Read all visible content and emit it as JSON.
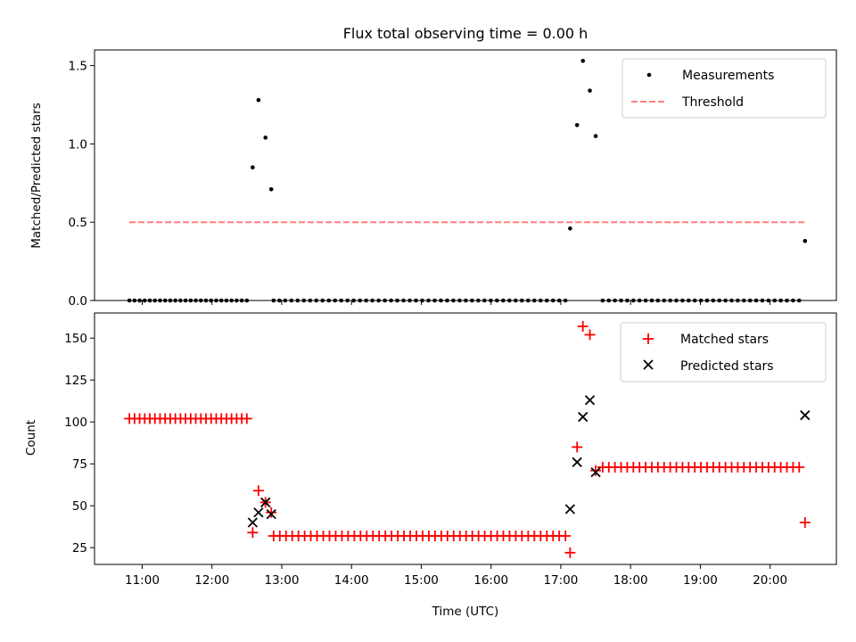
{
  "chart_data": [
    {
      "type": "scatter",
      "title": "Flux total observing time = 0.00 h",
      "xlabel": "",
      "ylabel": "Matched/Predicted stars",
      "xlim": [
        "10:19",
        "20:57"
      ],
      "ylim": [
        0,
        1.6
      ],
      "x_ticks": [
        "11:00",
        "12:00",
        "13:00",
        "14:00",
        "15:00",
        "16:00",
        "17:00",
        "18:00",
        "19:00",
        "20:00"
      ],
      "y_ticks": [
        "0.0",
        "0.5",
        "1.0",
        "1.5"
      ],
      "legend_position": "top-right",
      "legend": [
        {
          "label": "Measurements",
          "marker": "dot",
          "color": "#000000"
        },
        {
          "label": "Threshold",
          "marker": "dashed-line",
          "color": "#ff7f7f"
        }
      ],
      "series": [
        {
          "name": "Measurements",
          "color": "#000000",
          "segments": [
            {
              "from": "10:49",
              "to": "12:30",
              "count": 24,
              "y": 0
            }
          ],
          "points": [
            [
              "12:35",
              0.85
            ],
            [
              "12:40",
              1.28
            ],
            [
              "12:46",
              1.04
            ],
            [
              "12:51",
              0.71
            ],
            [
              "12:53",
              0
            ],
            [
              "12:58",
              0
            ],
            [
              "17:08",
              0.46
            ],
            [
              "17:14",
              1.12
            ],
            [
              "17:19",
              1.53
            ],
            [
              "17:25",
              1.34
            ],
            [
              "17:30",
              1.05
            ],
            [
              "20:30",
              0.38
            ]
          ],
          "extra_segments": [
            {
              "from": "13:03",
              "to": "17:04",
              "count": 46,
              "y": 0
            },
            {
              "from": "17:36",
              "to": "20:25",
              "count": 33,
              "y": 0
            }
          ]
        },
        {
          "name": "Threshold",
          "color": "#ff7f7f",
          "style": "dashed",
          "x": [
            "10:49",
            "20:30"
          ],
          "y": [
            0.5,
            0.5
          ]
        }
      ]
    },
    {
      "type": "scatter",
      "title": "",
      "xlabel": "Time (UTC)",
      "ylabel": "Count",
      "xlim": [
        "10:19",
        "20:57"
      ],
      "ylim": [
        15,
        165
      ],
      "x_ticks": [
        "11:00",
        "12:00",
        "13:00",
        "14:00",
        "15:00",
        "16:00",
        "17:00",
        "18:00",
        "19:00",
        "20:00"
      ],
      "y_ticks": [
        "25",
        "50",
        "75",
        "100",
        "125",
        "150"
      ],
      "legend_position": "top-right",
      "legend": [
        {
          "label": "Matched stars",
          "marker": "plus",
          "color": "#ff0000"
        },
        {
          "label": "Predicted stars",
          "marker": "x",
          "color": "#000000"
        }
      ],
      "series": [
        {
          "name": "Matched stars",
          "color": "#ff0000",
          "marker": "plus",
          "segments": [
            {
              "from": "10:49",
              "to": "12:30",
              "count": 24,
              "y": 102
            },
            {
              "from": "12:53",
              "to": "17:04",
              "count": 48,
              "y": 32
            },
            {
              "from": "17:36",
              "to": "20:25",
              "count": 33,
              "y": 73
            }
          ],
          "points": [
            [
              "12:35",
              34
            ],
            [
              "12:40",
              59
            ],
            [
              "12:46",
              52
            ],
            [
              "12:51",
              46
            ],
            [
              "17:08",
              22
            ],
            [
              "17:14",
              85
            ],
            [
              "17:19",
              157
            ],
            [
              "17:25",
              152
            ],
            [
              "17:30",
              71
            ],
            [
              "20:30",
              40
            ]
          ]
        },
        {
          "name": "Predicted stars",
          "color": "#000000",
          "marker": "x",
          "points": [
            [
              "12:35",
              40
            ],
            [
              "12:40",
              46
            ],
            [
              "12:46",
              52
            ],
            [
              "12:51",
              45
            ],
            [
              "17:08",
              48
            ],
            [
              "17:14",
              76
            ],
            [
              "17:19",
              103
            ],
            [
              "17:25",
              113
            ],
            [
              "17:30",
              70
            ],
            [
              "20:30",
              104
            ]
          ]
        }
      ]
    }
  ]
}
